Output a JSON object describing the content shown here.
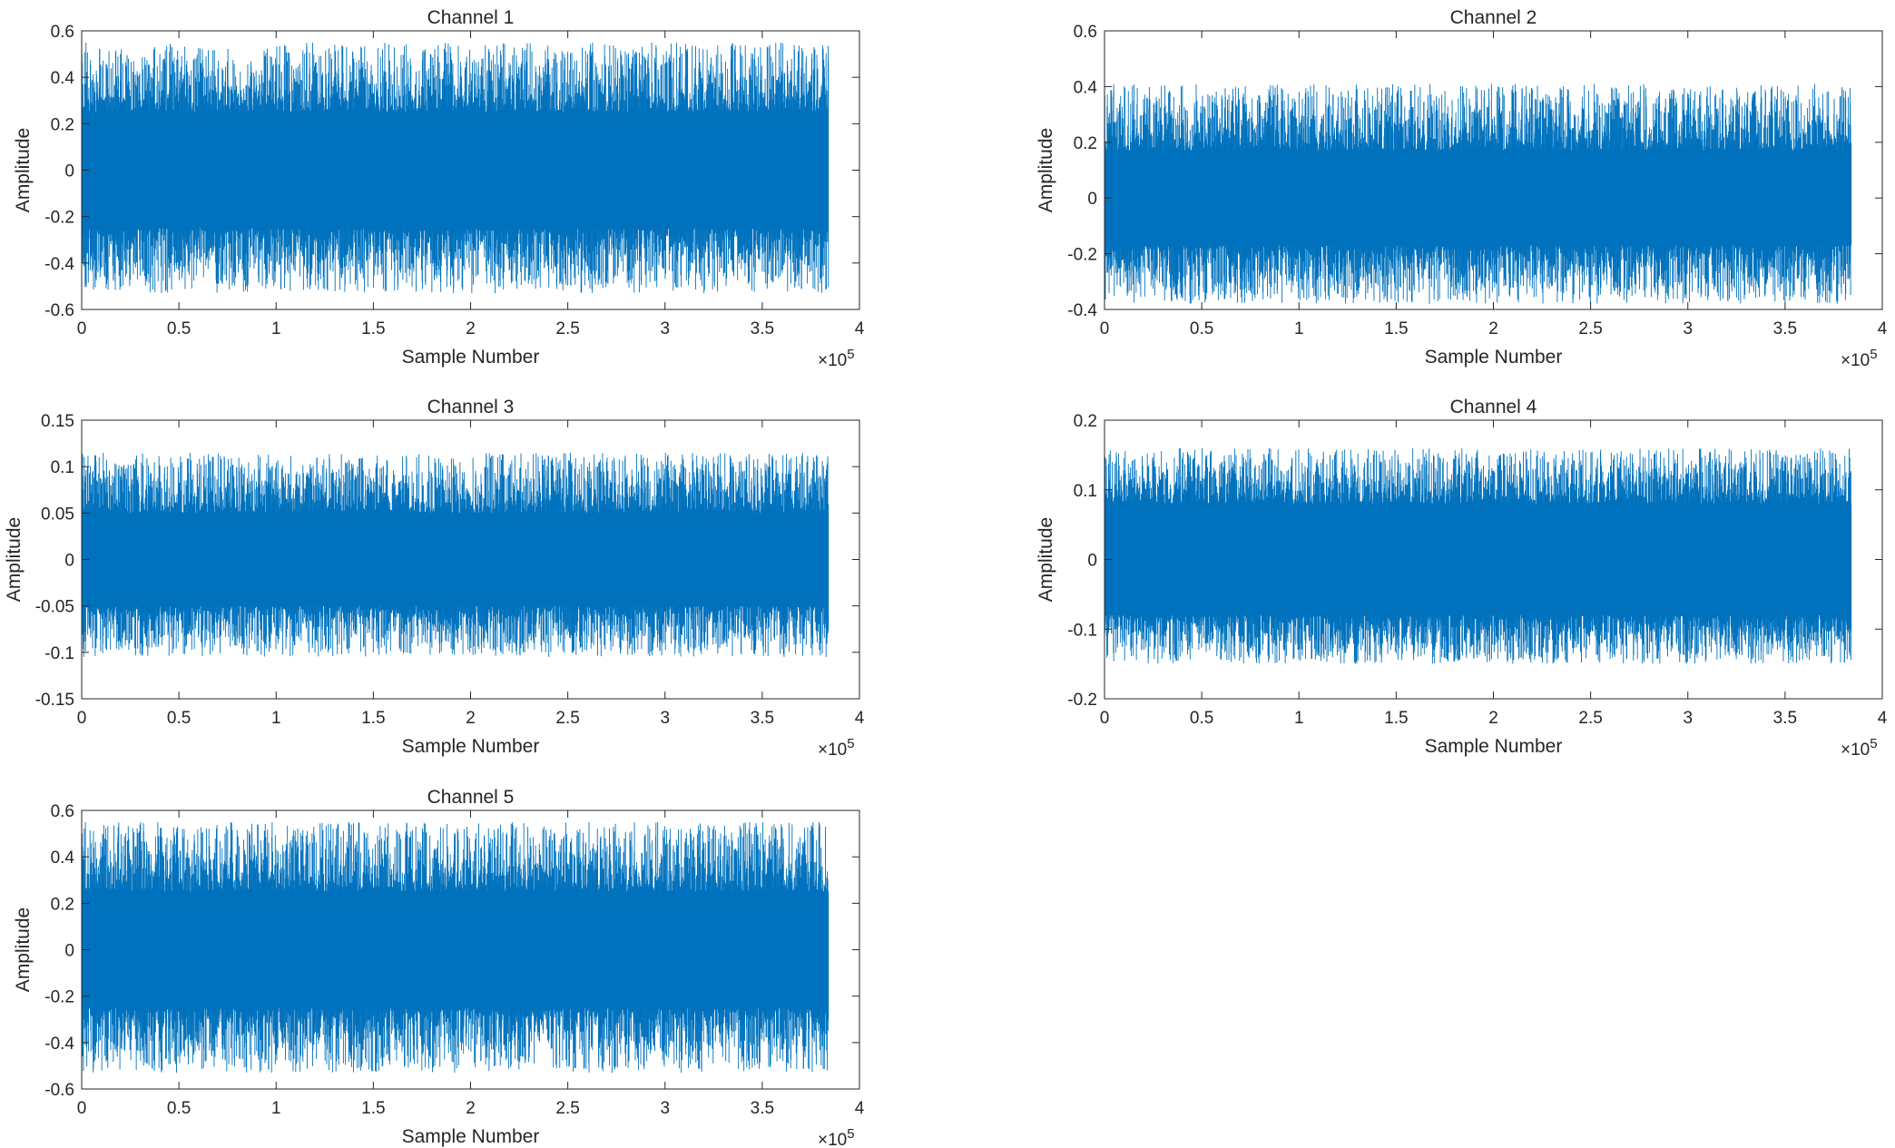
{
  "chart_data": [
    {
      "type": "line",
      "title": "Channel 1",
      "xlabel": "Sample Number",
      "ylabel": "Amplitude",
      "x_exponent_label": "10",
      "x_exponent": "5",
      "xlim": [
        0,
        400000
      ],
      "ylim": [
        -0.6,
        0.6
      ],
      "xticks": [
        0,
        50000,
        100000,
        150000,
        200000,
        250000,
        300000,
        350000,
        400000
      ],
      "xtick_labels": [
        "0",
        "0.5",
        "1",
        "1.5",
        "2",
        "2.5",
        "3",
        "3.5",
        "4"
      ],
      "yticks": [
        -0.6,
        -0.4,
        -0.2,
        0,
        0.2,
        0.4,
        0.6
      ],
      "ytick_labels": [
        "-0.6",
        "-0.4",
        "-0.2",
        "0",
        "0.2",
        "0.4",
        "0.6"
      ],
      "series": [
        {
          "samples": 384000,
          "core_range": [
            -0.25,
            0.25
          ],
          "peak_range": [
            -0.53,
            0.55
          ],
          "color": "#0072BD"
        }
      ]
    },
    {
      "type": "line",
      "title": "Channel 2",
      "xlabel": "Sample Number",
      "ylabel": "Amplitude",
      "x_exponent_label": "10",
      "x_exponent": "5",
      "xlim": [
        0,
        400000
      ],
      "ylim": [
        -0.4,
        0.6
      ],
      "xticks": [
        0,
        50000,
        100000,
        150000,
        200000,
        250000,
        300000,
        350000,
        400000
      ],
      "xtick_labels": [
        "0",
        "0.5",
        "1",
        "1.5",
        "2",
        "2.5",
        "3",
        "3.5",
        "4"
      ],
      "yticks": [
        -0.4,
        -0.2,
        0,
        0.2,
        0.4,
        0.6
      ],
      "ytick_labels": [
        "-0.4",
        "-0.2",
        "0",
        "0.2",
        "0.4",
        "0.6"
      ],
      "series": [
        {
          "samples": 384000,
          "core_range": [
            -0.17,
            0.17
          ],
          "peak_range": [
            -0.38,
            0.41
          ],
          "color": "#0072BD"
        }
      ]
    },
    {
      "type": "line",
      "title": "Channel 3",
      "xlabel": "Sample Number",
      "ylabel": "Amplitude",
      "x_exponent_label": "10",
      "x_exponent": "5",
      "xlim": [
        0,
        400000
      ],
      "ylim": [
        -0.15,
        0.15
      ],
      "xticks": [
        0,
        50000,
        100000,
        150000,
        200000,
        250000,
        300000,
        350000,
        400000
      ],
      "xtick_labels": [
        "0",
        "0.5",
        "1",
        "1.5",
        "2",
        "2.5",
        "3",
        "3.5",
        "4"
      ],
      "yticks": [
        -0.15,
        -0.1,
        -0.05,
        0,
        0.05,
        0.1,
        0.15
      ],
      "ytick_labels": [
        "-0.15",
        "-0.1",
        "-0.05",
        "0",
        "0.05",
        "0.1",
        "0.15"
      ],
      "series": [
        {
          "samples": 384000,
          "core_range": [
            -0.05,
            0.05
          ],
          "peak_range": [
            -0.105,
            0.115
          ],
          "color": "#0072BD"
        }
      ]
    },
    {
      "type": "line",
      "title": "Channel 4",
      "xlabel": "Sample Number",
      "ylabel": "Amplitude",
      "x_exponent_label": "10",
      "x_exponent": "5",
      "xlim": [
        0,
        400000
      ],
      "ylim": [
        -0.2,
        0.2
      ],
      "xticks": [
        0,
        50000,
        100000,
        150000,
        200000,
        250000,
        300000,
        350000,
        400000
      ],
      "xtick_labels": [
        "0",
        "0.5",
        "1",
        "1.5",
        "2",
        "2.5",
        "3",
        "3.5",
        "4"
      ],
      "yticks": [
        -0.2,
        -0.1,
        0,
        0.1,
        0.2
      ],
      "ytick_labels": [
        "-0.2",
        "-0.1",
        "0",
        "0.1",
        "0.2"
      ],
      "series": [
        {
          "samples": 384000,
          "core_range": [
            -0.08,
            0.08
          ],
          "peak_range": [
            -0.15,
            0.16
          ],
          "color": "#0072BD"
        }
      ]
    },
    {
      "type": "line",
      "title": "Channel 5",
      "xlabel": "Sample Number",
      "ylabel": "Amplitude",
      "x_exponent_label": "10",
      "x_exponent": "5",
      "xlim": [
        0,
        400000
      ],
      "ylim": [
        -0.6,
        0.6
      ],
      "xticks": [
        0,
        50000,
        100000,
        150000,
        200000,
        250000,
        300000,
        350000,
        400000
      ],
      "xtick_labels": [
        "0",
        "0.5",
        "1",
        "1.5",
        "2",
        "2.5",
        "3",
        "3.5",
        "4"
      ],
      "yticks": [
        -0.6,
        -0.4,
        -0.2,
        0,
        0.2,
        0.4,
        0.6
      ],
      "ytick_labels": [
        "-0.6",
        "-0.4",
        "-0.2",
        "0",
        "0.2",
        "0.4",
        "0.6"
      ],
      "series": [
        {
          "samples": 384000,
          "core_range": [
            -0.25,
            0.25
          ],
          "peak_range": [
            -0.53,
            0.55
          ],
          "color": "#0072BD"
        }
      ]
    }
  ]
}
